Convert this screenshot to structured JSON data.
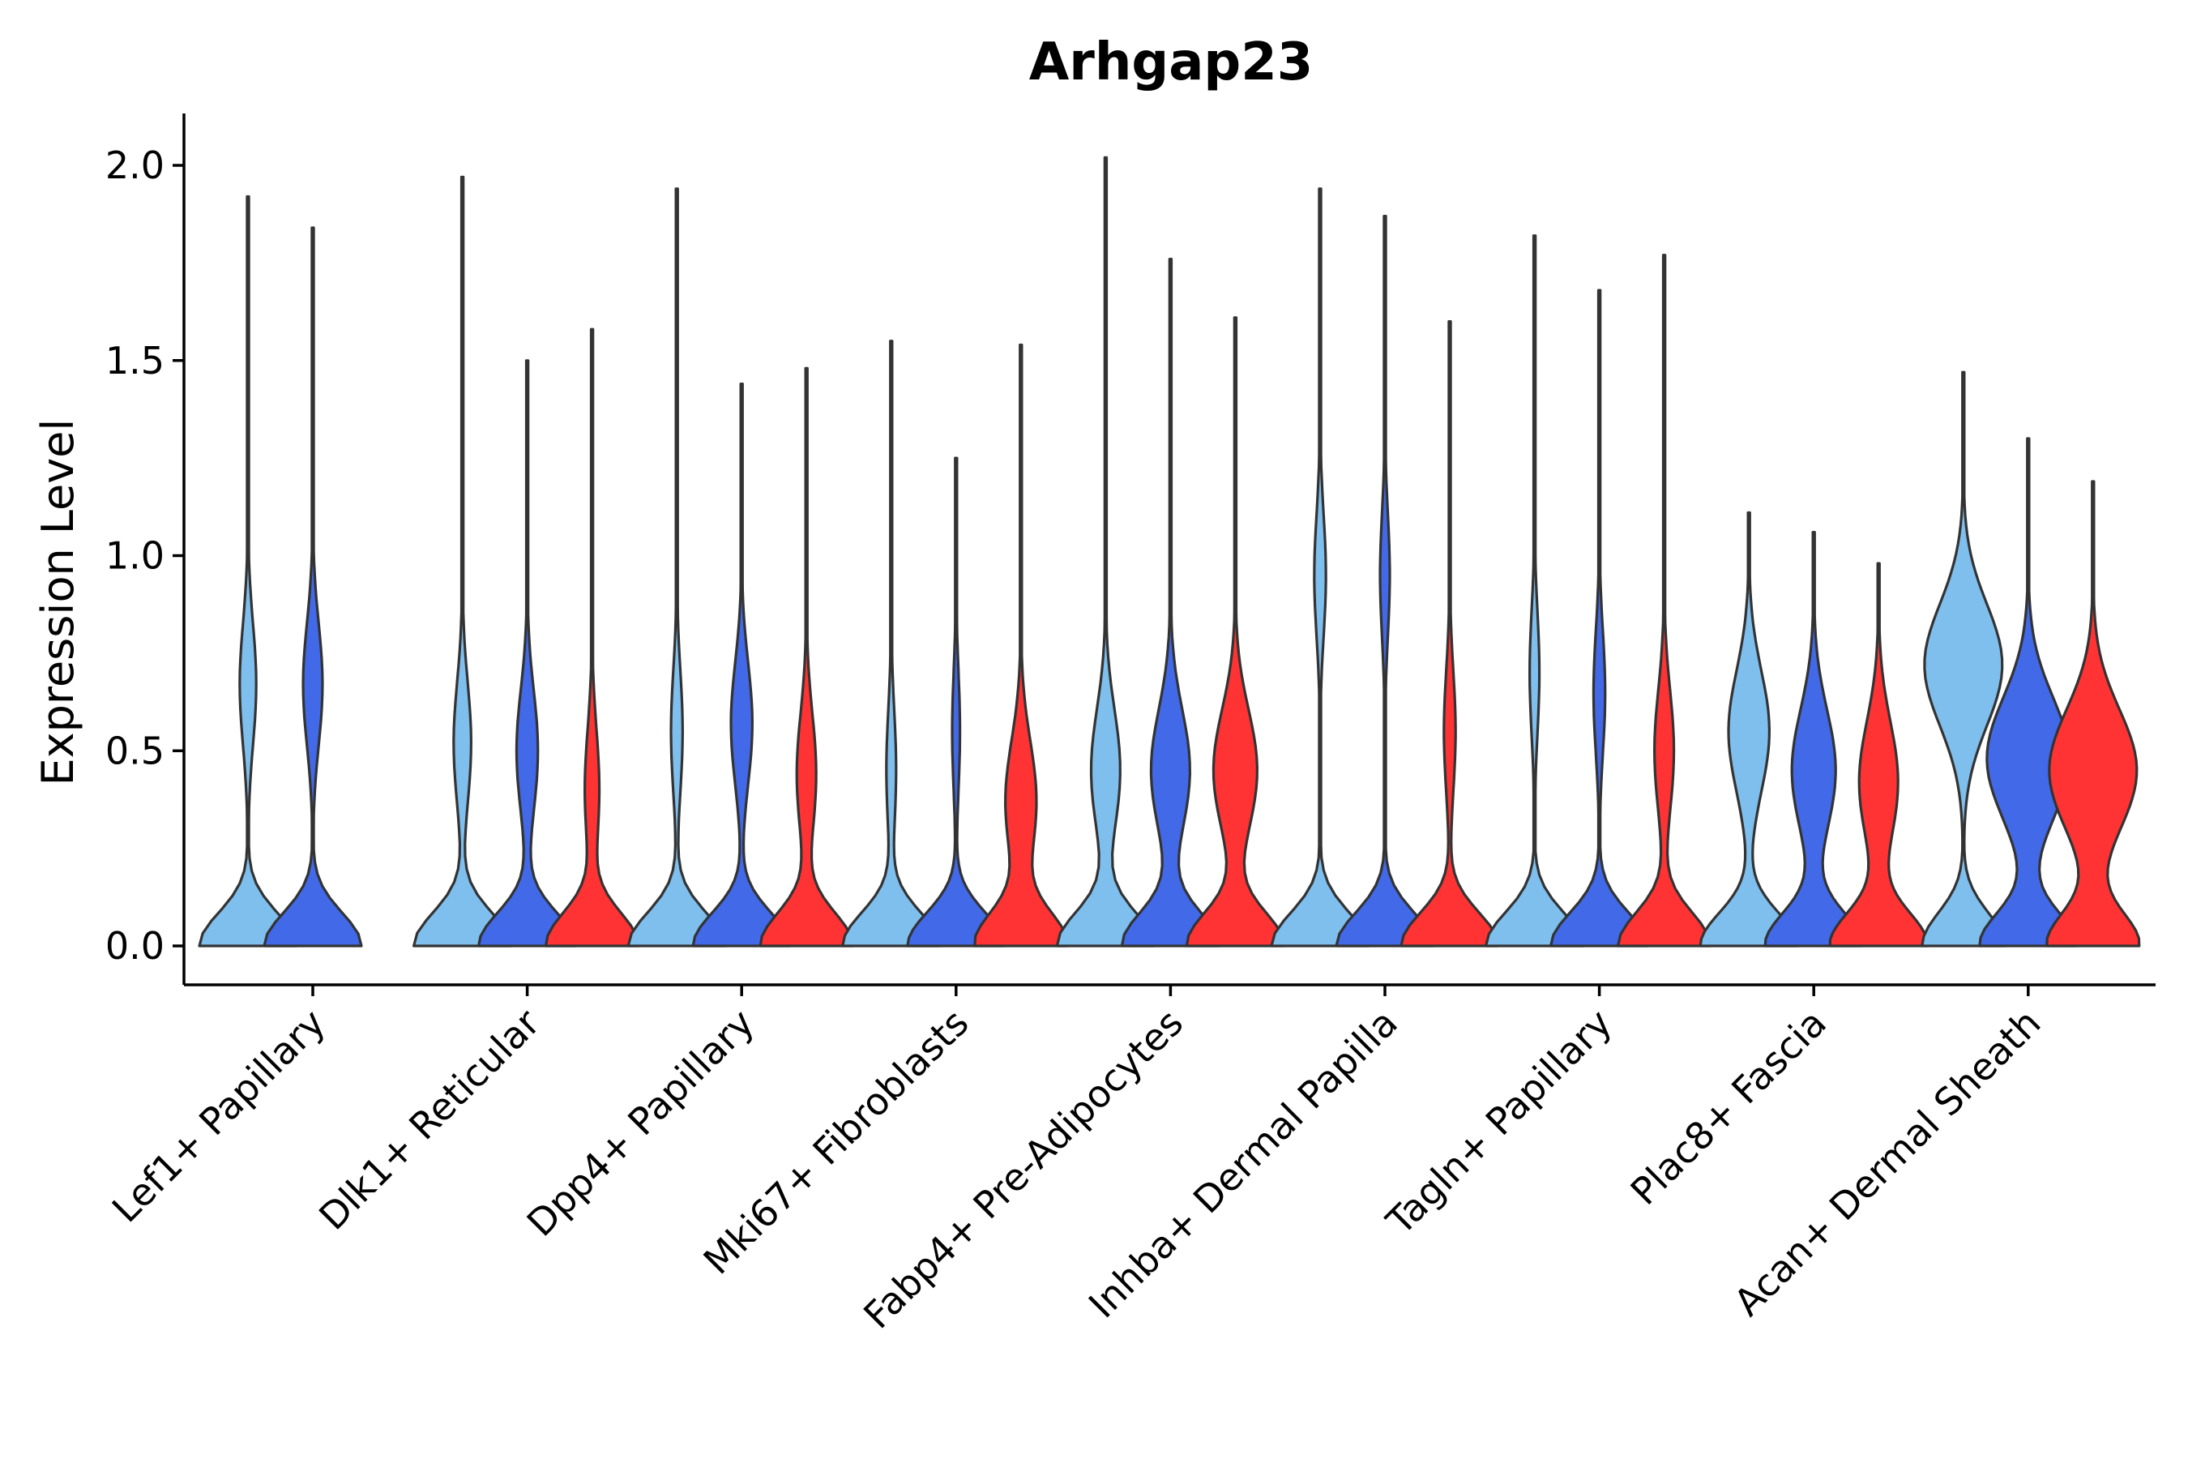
{
  "chart_data": {
    "type": "violin",
    "title": "Arhgap23",
    "xlabel": "",
    "ylabel": "Expression Level",
    "ylim": [
      -0.1,
      2.12
    ],
    "yticks": [
      "0.0",
      "0.5",
      "1.0",
      "1.5",
      "2.0"
    ],
    "categories": [
      "Lef1+ Papillary",
      "Dlk1+ Reticular",
      "Dpp4+ Papillary",
      "Mki67+ Fibroblasts",
      "Fabp4+ Pre-Adipocytes",
      "Inhba+ Dermal Papilla",
      "Tagln+ Papillary",
      "Plac8+ Fascia",
      "Acan+ Dermal Sheath"
    ],
    "series_colors": [
      "#7fbfee",
      "#4169e8",
      "#ff3333"
    ],
    "violins": [
      {
        "category": 0,
        "series": 0,
        "max": 1.92,
        "base_width": 1.0,
        "peak2": 0.67,
        "peak2_width": 0.17
      },
      {
        "category": 0,
        "series": 1,
        "max": 1.84,
        "base_width": 1.0,
        "peak2": 0.67,
        "peak2_width": 0.2
      },
      {
        "category": 1,
        "series": 0,
        "max": 1.97,
        "base_width": 1.0,
        "peak2": 0.52,
        "peak2_width": 0.18
      },
      {
        "category": 1,
        "series": 1,
        "max": 1.5,
        "base_width": 1.0,
        "peak2": 0.5,
        "peak2_width": 0.22
      },
      {
        "category": 1,
        "series": 2,
        "max": 1.58,
        "base_width": 0.95,
        "peak2": 0.4,
        "peak2_width": 0.15
      },
      {
        "category": 2,
        "series": 0,
        "max": 1.94,
        "base_width": 1.0,
        "peak2": 0.55,
        "peak2_width": 0.12
      },
      {
        "category": 2,
        "series": 1,
        "max": 1.44,
        "base_width": 1.0,
        "peak2": 0.57,
        "peak2_width": 0.22
      },
      {
        "category": 2,
        "series": 2,
        "max": 1.48,
        "base_width": 0.95,
        "peak2": 0.44,
        "peak2_width": 0.2
      },
      {
        "category": 3,
        "series": 0,
        "max": 1.55,
        "base_width": 1.0,
        "peak2": 0.45,
        "peak2_width": 0.1
      },
      {
        "category": 3,
        "series": 1,
        "max": 1.25,
        "base_width": 1.0,
        "peak2": 0.55,
        "peak2_width": 0.08
      },
      {
        "category": 3,
        "series": 2,
        "max": 1.54,
        "base_width": 0.95,
        "peak2": 0.37,
        "peak2_width": 0.32
      },
      {
        "category": 4,
        "series": 0,
        "max": 2.02,
        "base_width": 1.0,
        "peak2": 0.45,
        "peak2_width": 0.3
      },
      {
        "category": 4,
        "series": 1,
        "max": 1.76,
        "base_width": 1.0,
        "peak2": 0.45,
        "peak2_width": 0.4
      },
      {
        "category": 4,
        "series": 2,
        "max": 1.61,
        "base_width": 1.0,
        "peak2": 0.45,
        "peak2_width": 0.45
      },
      {
        "category": 5,
        "series": 0,
        "max": 1.94,
        "base_width": 1.0,
        "peak2": 0.95,
        "peak2_width": 0.12
      },
      {
        "category": 5,
        "series": 1,
        "max": 1.87,
        "base_width": 1.0,
        "peak2": 0.95,
        "peak2_width": 0.1
      },
      {
        "category": 5,
        "series": 2,
        "max": 1.6,
        "base_width": 1.0,
        "peak2": 0.55,
        "peak2_width": 0.12
      },
      {
        "category": 6,
        "series": 0,
        "max": 1.82,
        "base_width": 1.0,
        "peak2": 0.7,
        "peak2_width": 0.1
      },
      {
        "category": 6,
        "series": 1,
        "max": 1.68,
        "base_width": 1.0,
        "peak2": 0.65,
        "peak2_width": 0.12
      },
      {
        "category": 6,
        "series": 2,
        "max": 1.77,
        "base_width": 0.95,
        "peak2": 0.5,
        "peak2_width": 0.2
      },
      {
        "category": 7,
        "series": 0,
        "max": 1.11,
        "base_width": 1.0,
        "peak2": 0.55,
        "peak2_width": 0.42
      },
      {
        "category": 7,
        "series": 1,
        "max": 1.06,
        "base_width": 1.0,
        "peak2": 0.45,
        "peak2_width": 0.45
      },
      {
        "category": 7,
        "series": 2,
        "max": 0.98,
        "base_width": 1.0,
        "peak2": 0.42,
        "peak2_width": 0.4
      },
      {
        "category": 8,
        "series": 0,
        "max": 1.47,
        "base_width": 0.85,
        "peak2": 0.72,
        "peak2_width": 0.8
      },
      {
        "category": 8,
        "series": 1,
        "max": 1.3,
        "base_width": 1.0,
        "peak2": 0.48,
        "peak2_width": 0.85
      },
      {
        "category": 8,
        "series": 2,
        "max": 1.19,
        "base_width": 0.95,
        "peak2": 0.45,
        "peak2_width": 0.9
      }
    ]
  }
}
